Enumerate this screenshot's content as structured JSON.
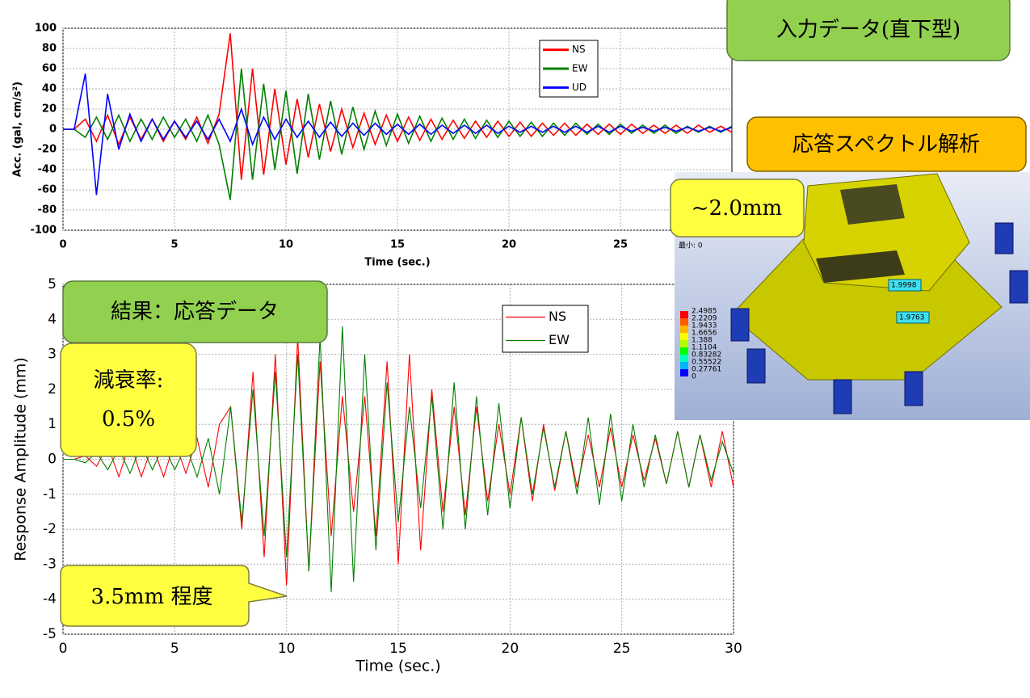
{
  "chart_data": [
    {
      "type": "line",
      "y_label": "Acc. (gal, cm/s²)",
      "x_label": "Time (sec.)",
      "xlim": [
        0,
        30
      ],
      "xticks": [
        0,
        5,
        10,
        15,
        20,
        25
      ],
      "ylim": [
        -100,
        100
      ],
      "yticks": [
        -100,
        -80,
        -60,
        -40,
        -20,
        0,
        20,
        40,
        60,
        80,
        100
      ],
      "grid": true,
      "x": [
        0,
        0.5,
        1,
        1.5,
        2,
        2.5,
        3,
        3.5,
        4,
        4.5,
        5,
        5.5,
        6,
        6.5,
        7,
        7.5,
        8,
        8.5,
        9,
        9.5,
        10,
        10.5,
        11,
        11.5,
        12,
        12.5,
        13,
        13.5,
        14,
        14.5,
        15,
        15.5,
        16,
        16.5,
        17,
        17.5,
        18,
        18.5,
        19,
        19.5,
        20,
        20.5,
        21,
        21.5,
        22,
        22.5,
        23,
        23.5,
        24,
        24.5,
        25,
        25.5,
        26,
        26.5,
        27,
        27.5,
        28,
        28.5,
        29,
        29.5,
        30
      ],
      "series": [
        {
          "name": "NS",
          "color": "#ff0000",
          "values": [
            0,
            0,
            10,
            -12,
            14,
            -15,
            12,
            -10,
            10,
            -12,
            8,
            -10,
            12,
            -14,
            15,
            95,
            -50,
            60,
            -45,
            40,
            -35,
            30,
            -28,
            25,
            -22,
            20,
            -18,
            16,
            -15,
            14,
            -12,
            12,
            -11,
            10,
            -10,
            9,
            -9,
            8,
            -8,
            8,
            -7,
            7,
            -7,
            6,
            -6,
            6,
            -6,
            5,
            -5,
            5,
            -5,
            5,
            -4,
            4,
            -4,
            4,
            -4,
            4,
            -3,
            3,
            -3
          ]
        },
        {
          "name": "EW",
          "color": "#008000",
          "values": [
            0,
            0,
            -8,
            12,
            -10,
            14,
            -12,
            10,
            -10,
            12,
            -8,
            10,
            -12,
            14,
            -15,
            -70,
            60,
            -50,
            45,
            -40,
            38,
            -44,
            35,
            -30,
            28,
            -25,
            22,
            -20,
            18,
            -16,
            15,
            -14,
            13,
            -12,
            11,
            -10,
            10,
            -9,
            9,
            -8,
            8,
            -7,
            7,
            -7,
            6,
            -6,
            6,
            -5,
            5,
            -5,
            5,
            -4,
            4,
            -4,
            4,
            -4,
            3,
            -3,
            3,
            -3,
            3
          ]
        },
        {
          "name": "UD",
          "color": "#0000ff",
          "values": [
            0,
            0,
            55,
            -65,
            35,
            -20,
            15,
            -12,
            10,
            -10,
            8,
            -8,
            8,
            -10,
            10,
            -12,
            20,
            -15,
            12,
            -10,
            10,
            -8,
            8,
            -8,
            7,
            -7,
            6,
            -6,
            6,
            -5,
            5,
            -5,
            5,
            -5,
            4,
            -4,
            4,
            -4,
            4,
            -4,
            3,
            -3,
            3,
            -3,
            3,
            -3,
            3,
            -3,
            3,
            -3,
            3,
            -2,
            2,
            -2,
            2,
            -2,
            2,
            -2,
            2,
            -2,
            2
          ]
        }
      ]
    },
    {
      "type": "line",
      "y_label": "Response Amplitude (mm)",
      "x_label": "Time (sec.)",
      "xlim": [
        0,
        30
      ],
      "xticks": [
        0,
        5,
        10,
        15,
        20,
        25,
        30
      ],
      "ylim": [
        -5,
        5
      ],
      "yticks": [
        -5,
        -4,
        -3,
        -2,
        -1,
        0,
        1,
        2,
        3,
        4,
        5
      ],
      "grid": true,
      "x": [
        0,
        0.5,
        1,
        1.5,
        2,
        2.5,
        3,
        3.5,
        4,
        4.5,
        5,
        5.5,
        6,
        6.5,
        7,
        7.5,
        8,
        8.5,
        9,
        9.5,
        10,
        10.5,
        11,
        11.5,
        12,
        12.5,
        13,
        13.5,
        14,
        14.5,
        15,
        15.5,
        16,
        16.5,
        17,
        17.5,
        18,
        18.5,
        19,
        19.5,
        20,
        20.5,
        21,
        21.5,
        22,
        22.5,
        23,
        23.5,
        24,
        24.5,
        25,
        25.5,
        26,
        26.5,
        27,
        27.5,
        28,
        28.5,
        29,
        29.5,
        30
      ],
      "series": [
        {
          "name": "NS",
          "color": "#ff0000",
          "values": [
            0,
            0,
            0.1,
            -0.2,
            0.4,
            -0.5,
            0.5,
            -0.5,
            0.4,
            -0.5,
            0.5,
            -0.4,
            0.6,
            -0.8,
            1.0,
            1.5,
            -2.0,
            2.5,
            -2.8,
            3.0,
            -3.6,
            3.5,
            -3.2,
            2.8,
            -2.2,
            1.8,
            -1.5,
            1.8,
            -2.2,
            2.8,
            -3.0,
            3.0,
            -2.6,
            2.0,
            -1.5,
            1.5,
            -1.6,
            1.5,
            -1.2,
            1.0,
            -1.0,
            1.2,
            -1.2,
            1.0,
            -0.9,
            0.8,
            -0.8,
            0.7,
            -0.8,
            0.9,
            -0.8,
            0.7,
            -0.6,
            0.6,
            -0.7,
            0.8,
            -0.8,
            0.7,
            -0.8,
            0.8,
            -0.8
          ]
        },
        {
          "name": "EW",
          "color": "#008000",
          "values": [
            0,
            0,
            -0.1,
            0.2,
            -0.3,
            0.3,
            -0.4,
            0.4,
            -0.3,
            0.4,
            -0.3,
            0.4,
            -0.5,
            0.6,
            -1.0,
            1.5,
            -1.8,
            2.0,
            -2.2,
            2.5,
            -2.8,
            3.0,
            -3.2,
            3.5,
            -3.8,
            3.8,
            -3.5,
            3.0,
            -2.6,
            2.2,
            -1.8,
            1.5,
            -1.4,
            1.8,
            -2.0,
            2.2,
            -2.0,
            1.8,
            -1.6,
            1.6,
            -1.4,
            1.2,
            -1.0,
            0.9,
            -0.8,
            0.8,
            -1.0,
            1.2,
            -1.3,
            1.3,
            -1.2,
            1.0,
            -0.8,
            0.7,
            -0.7,
            0.8,
            -0.8,
            0.7,
            -0.6,
            0.5,
            -0.4
          ]
        }
      ]
    }
  ],
  "callouts": {
    "input": "入力データ(直下型)",
    "spectrum": "応答スペクトル解析",
    "spectrum_result": "~2.0mm",
    "result": "結果：応答データ",
    "damping_label": "減衰率:",
    "damping_value": "0.5%",
    "peak": "3.5mm 程度"
  },
  "fea_image": {
    "min_label": "最小: 0",
    "colorbar": [
      "2.4985",
      "2.2209",
      "1.9433",
      "1.6656",
      "1.388",
      "1.1104",
      "0.83282",
      "0.55522",
      "0.27761",
      "0"
    ],
    "probes": [
      "1.9998",
      "1.9763"
    ]
  }
}
